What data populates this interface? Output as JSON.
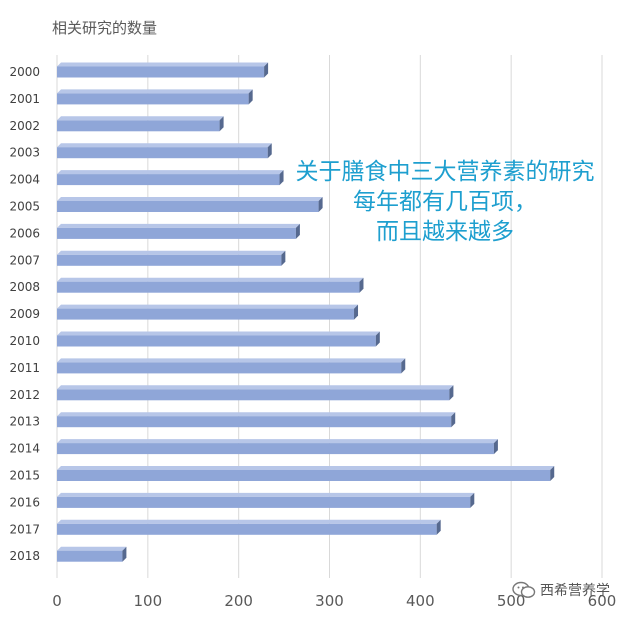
{
  "chart_data": {
    "type": "bar",
    "orientation": "horizontal",
    "title": "相关研究的数量",
    "categories": [
      "2000",
      "2001",
      "2002",
      "2003",
      "2004",
      "2005",
      "2006",
      "2007",
      "2008",
      "2009",
      "2010",
      "2011",
      "2012",
      "2013",
      "2014",
      "2015",
      "2016",
      "2017",
      "2018"
    ],
    "values": [
      228,
      211,
      179,
      232,
      245,
      288,
      263,
      247,
      333,
      327,
      351,
      379,
      432,
      434,
      481,
      543,
      455,
      418,
      72
    ],
    "xlim": [
      0,
      600
    ],
    "xticks": [
      "0",
      "100",
      "200",
      "300",
      "400",
      "500",
      "600"
    ],
    "grid": "vertical",
    "bar_color": "#8fa6d8",
    "annotation": [
      "关于膳食中三大营养素的研究",
      "每年都有几百项，",
      "而且越来越多"
    ],
    "annotation_color": "#1e9fcf"
  },
  "watermark": {
    "text": "西希营养学",
    "icon": "wechat-logo-icon"
  }
}
